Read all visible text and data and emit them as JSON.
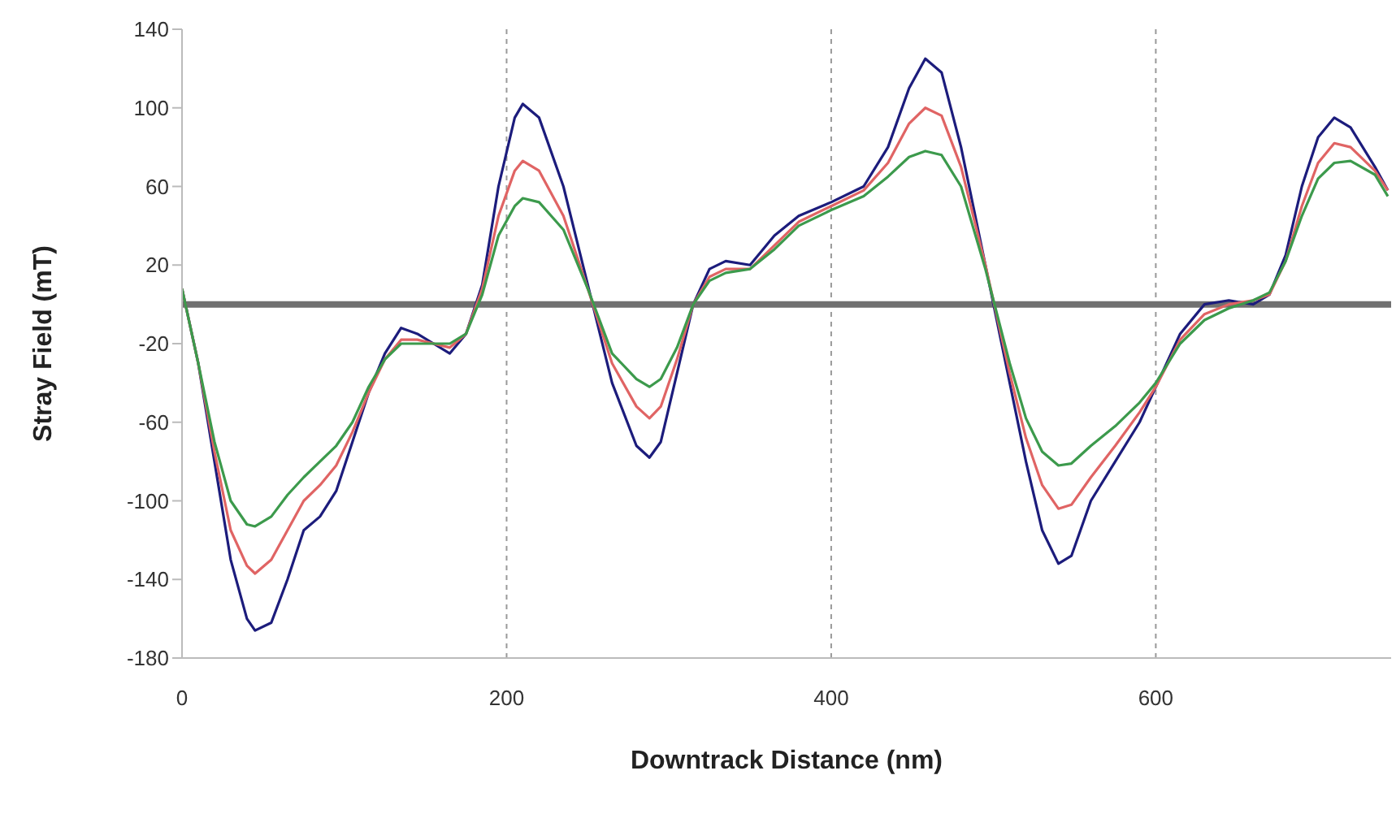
{
  "chart_data": {
    "type": "line",
    "xlabel": "Downtrack Distance (nm)",
    "ylabel": "Stray Field (mT)",
    "x": [
      0,
      10,
      20,
      30,
      40,
      45,
      55,
      65,
      75,
      85,
      95,
      105,
      115,
      125,
      135,
      145,
      155,
      165,
      175,
      185,
      195,
      205,
      210,
      220,
      235,
      250,
      265,
      280,
      288,
      295,
      305,
      315,
      325,
      335,
      350,
      365,
      380,
      400,
      420,
      435,
      448,
      458,
      468,
      480,
      495,
      510,
      520,
      530,
      540,
      548,
      560,
      575,
      590,
      600,
      615,
      630,
      645,
      660,
      670,
      680,
      690,
      700,
      710,
      720,
      735,
      743
    ],
    "series": [
      {
        "color": "#1c1c7c",
        "values": [
          8,
          -30,
          -80,
          -130,
          -160,
          -166,
          -162,
          -140,
          -115,
          -108,
          -95,
          -70,
          -45,
          -25,
          -12,
          -15,
          -20,
          -25,
          -15,
          10,
          60,
          95,
          102,
          95,
          60,
          10,
          -40,
          -72,
          -78,
          -70,
          -35,
          0,
          18,
          22,
          20,
          35,
          45,
          52,
          60,
          80,
          110,
          125,
          118,
          80,
          20,
          -40,
          -80,
          -115,
          -132,
          -128,
          -100,
          -80,
          -60,
          -42,
          -15,
          0,
          2,
          0,
          5,
          25,
          60,
          85,
          95,
          90,
          70,
          58
        ]
      },
      {
        "color": "#e06464",
        "values": [
          8,
          -30,
          -75,
          -115,
          -133,
          -137,
          -130,
          -115,
          -100,
          -92,
          -82,
          -65,
          -45,
          -28,
          -18,
          -18,
          -20,
          -22,
          -15,
          8,
          45,
          68,
          73,
          68,
          45,
          8,
          -30,
          -52,
          -58,
          -52,
          -28,
          0,
          14,
          18,
          18,
          30,
          42,
          50,
          58,
          72,
          92,
          100,
          96,
          70,
          20,
          -35,
          -68,
          -92,
          -104,
          -102,
          -88,
          -72,
          -55,
          -42,
          -18,
          -5,
          0,
          2,
          5,
          22,
          50,
          72,
          82,
          80,
          68,
          58
        ]
      },
      {
        "color": "#3c9a4c",
        "values": [
          8,
          -30,
          -70,
          -100,
          -112,
          -113,
          -108,
          -97,
          -88,
          -80,
          -72,
          -60,
          -42,
          -28,
          -20,
          -20,
          -20,
          -20,
          -15,
          5,
          35,
          50,
          54,
          52,
          38,
          8,
          -25,
          -38,
          -42,
          -38,
          -22,
          0,
          12,
          16,
          18,
          28,
          40,
          48,
          55,
          65,
          75,
          78,
          76,
          60,
          18,
          -30,
          -58,
          -75,
          -82,
          -81,
          -72,
          -62,
          -50,
          -40,
          -20,
          -8,
          -2,
          2,
          6,
          22,
          45,
          64,
          72,
          73,
          66,
          55
        ]
      }
    ],
    "xlim": [
      0,
      745
    ],
    "xticks": [
      0,
      200,
      400,
      600
    ],
    "ylim": [
      -180,
      140
    ],
    "yticks": [
      -180,
      -140,
      -100,
      -60,
      -20,
      20,
      60,
      100,
      140
    ],
    "grid": "x",
    "legend": false,
    "marker": "none",
    "line_style": "solid",
    "ref_lines": [
      {
        "axis": "y",
        "value": 0,
        "color": "#707070"
      }
    ]
  }
}
